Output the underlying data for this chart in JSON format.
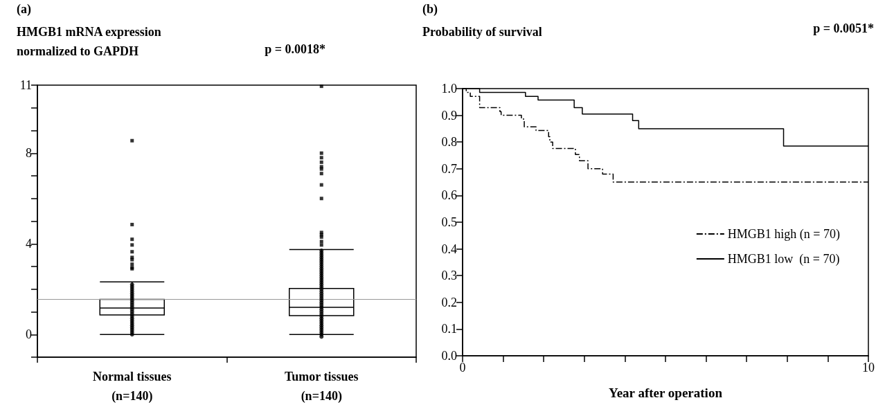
{
  "chart_data": [
    {
      "type": "box",
      "title": "(a)",
      "ylabel": "HMGB1 mRNA expression\nnormalized to GAPDH",
      "categories": [
        "Normal tissues\n(n=140)",
        "Tumor tissues\n(n=140)"
      ],
      "boxes": [
        {
          "low": 0,
          "q1": 0.86,
          "median": 1.17,
          "q3": 1.55,
          "high": 2.32,
          "outliers": [
            8.55,
            4.85,
            4.2,
            3.95,
            3.65,
            3.4,
            3.3,
            3.1,
            2.95,
            2.9
          ]
        },
        {
          "low": 0,
          "q1": 0.83,
          "median": 1.2,
          "q3": 2.03,
          "high": 3.75,
          "outliers": [
            10.95,
            8.0,
            7.8,
            7.6,
            7.4,
            7.3,
            7.1,
            6.6,
            6.0,
            4.5,
            4.4,
            4.3,
            4.1,
            3.95
          ]
        }
      ],
      "series": [
        {
          "type": "scatter",
          "color": "#000000",
          "marker": "circle",
          "x": [
            "Normal tissues\n(n=140)",
            "Normal tissues\n(n=140)",
            "Normal tissues\n(n=140)",
            "Normal tissues\n(n=140)",
            "Normal tissues\n(n=140)",
            "Normal tissues\n(n=140)",
            "Normal tissues\n(n=140)",
            "Normal tissues\n(n=140)",
            "Normal tissues\n(n=140)",
            "Normal tissues\n(n=140)",
            "Normal tissues\n(n=140)",
            "Normal tissues\n(n=140)",
            "Normal tissues\n(n=140)",
            "Normal tissues\n(n=140)",
            "Normal tissues\n(n=140)",
            "Normal tissues\n(n=140)",
            "Normal tissues\n(n=140)",
            "Normal tissues\n(n=140)",
            "Normal tissues\n(n=140)",
            "Normal tissues\n(n=140)",
            "Normal tissues\n(n=140)",
            "Normal tissues\n(n=140)",
            "Normal tissues\n(n=140)",
            "Tumor tissues\n(n=140)",
            "Tumor tissues\n(n=140)",
            "Tumor tissues\n(n=140)",
            "Tumor tissues\n(n=140)",
            "Tumor tissues\n(n=140)",
            "Tumor tissues\n(n=140)",
            "Tumor tissues\n(n=140)",
            "Tumor tissues\n(n=140)",
            "Tumor tissues\n(n=140)",
            "Tumor tissues\n(n=140)",
            "Tumor tissues\n(n=140)",
            "Tumor tissues\n(n=140)",
            "Tumor tissues\n(n=140)",
            "Tumor tissues\n(n=140)",
            "Tumor tissues\n(n=140)",
            "Tumor tissues\n(n=140)",
            "Tumor tissues\n(n=140)",
            "Tumor tissues\n(n=140)",
            "Tumor tissues\n(n=140)",
            "Tumor tissues\n(n=140)",
            "Tumor tissues\n(n=140)",
            "Tumor tissues\n(n=140)",
            "Tumor tissues\n(n=140)",
            "Tumor tissues\n(n=140)",
            "Tumor tissues\n(n=140)",
            "Tumor tissues\n(n=140)",
            "Tumor tissues\n(n=140)",
            "Tumor tissues\n(n=140)",
            "Tumor tissues\n(n=140)",
            "Tumor tissues\n(n=140)",
            "Tumor tissues\n(n=140)",
            "Tumor tissues\n(n=140)",
            "Tumor tissues\n(n=140)",
            "Tumor tissues\n(n=140)",
            "Tumor tissues\n(n=140)",
            "Tumor tissues\n(n=140)",
            "Tumor tissues\n(n=140)",
            "Tumor tissues\n(n=140)",
            "Tumor tissues\n(n=140)"
          ],
          "values": [
            0,
            0.1,
            0.2,
            0.3,
            0.4,
            0.5,
            0.6,
            0.7,
            0.8,
            0.9,
            1.0,
            1.1,
            1.2,
            1.3,
            1.4,
            1.5,
            1.6,
            1.7,
            1.8,
            1.9,
            2.0,
            2.1,
            2.2,
            -0.1,
            0,
            0.1,
            0.2,
            0.3,
            0.4,
            0.5,
            0.6,
            0.7,
            0.8,
            0.9,
            1.0,
            1.1,
            1.2,
            1.3,
            1.4,
            1.5,
            1.6,
            1.7,
            1.8,
            1.9,
            2.0,
            2.1,
            2.2,
            2.3,
            2.4,
            2.5,
            2.6,
            2.7,
            2.8,
            2.9,
            3.0,
            3.1,
            3.2,
            3.3,
            3.4,
            3.5,
            3.6,
            3.7
          ]
        }
      ],
      "ylim": [
        -1,
        11
      ],
      "yticks": [
        {
          "value": -1,
          "label": null
        },
        0,
        {
          "value": 1,
          "label": null
        },
        {
          "value": 2,
          "label": null
        },
        {
          "value": 3,
          "label": null
        },
        4,
        {
          "value": 5,
          "label": null
        },
        {
          "value": 6,
          "label": null
        },
        {
          "value": 7,
          "label": null
        },
        8,
        {
          "value": 9,
          "label": null
        },
        {
          "value": 10,
          "label": null
        },
        11
      ],
      "ref_lines": [
        {
          "axis": "y",
          "value": 1.57,
          "color": "#999999"
        }
      ],
      "annotations": [
        "p = 0.0018*"
      ]
    },
    {
      "type": "step",
      "title": "(b)",
      "ylabel": "Probability of survival",
      "xlabel": "Year after operation",
      "series": [
        {
          "name": "HMGB1 high (n = 70)",
          "color": "#000000",
          "line_style": "dashed",
          "x": [
            0,
            0.09,
            0.19,
            0.42,
            0.92,
            0.95,
            1.45,
            1.52,
            1.81,
            2.12,
            2.15,
            2.22,
            2.78,
            2.88,
            3.09,
            3.45,
            3.71,
            10
          ],
          "values": [
            1.0,
            0.986,
            0.971,
            0.929,
            0.914,
            0.9,
            0.886,
            0.857,
            0.843,
            0.82,
            0.8,
            0.776,
            0.753,
            0.73,
            0.7,
            0.68,
            0.65,
            0.65
          ]
        },
        {
          "name": "HMGB1 low  (n = 70)",
          "color": "#000000",
          "line_style": "solid",
          "x": [
            0,
            0.42,
            1.55,
            1.86,
            2.75,
            2.95,
            4.19,
            4.34,
            7.91,
            10
          ],
          "values": [
            1.0,
            0.986,
            0.971,
            0.957,
            0.929,
            0.905,
            0.88,
            0.85,
            0.785,
            0.785
          ]
        }
      ],
      "xlim": [
        0,
        10
      ],
      "xticks": [
        0,
        {
          "value": 1,
          "label": null
        },
        {
          "value": 2,
          "label": null
        },
        {
          "value": 3,
          "label": null
        },
        {
          "value": 4,
          "label": null
        },
        {
          "value": 5,
          "label": null
        },
        {
          "value": 6,
          "label": null
        },
        {
          "value": 7,
          "label": null
        },
        {
          "value": 8,
          "label": null
        },
        {
          "value": 9,
          "label": null
        },
        10
      ],
      "ylim": [
        0,
        1
      ],
      "yticks": [
        {
          "value": 0,
          "label": "0.0"
        },
        0.1,
        0.2,
        0.3,
        0.4,
        0.5,
        0.6,
        0.7,
        0.8,
        0.9,
        {
          "value": 1,
          "label": "1.0"
        }
      ],
      "legend": "bottom right",
      "annotations": [
        "p = 0.0051*"
      ]
    }
  ]
}
